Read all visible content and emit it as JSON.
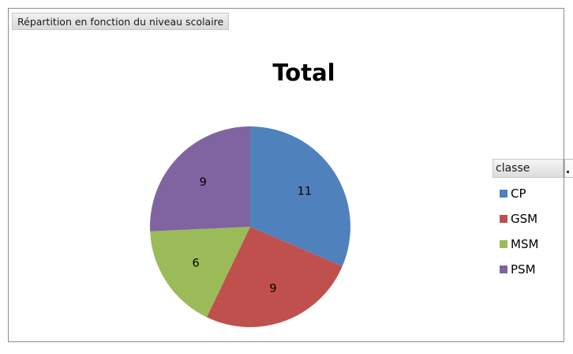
{
  "filter_label": "Répartition en fonction du niveau scolaire",
  "legend": {
    "field_label": "classe"
  },
  "chart_data": {
    "type": "pie",
    "title": "Total",
    "categories": [
      "CP",
      "GSM",
      "MSM",
      "PSM"
    ],
    "values": [
      11,
      9,
      6,
      9
    ],
    "colors": [
      "#4f81bd",
      "#c0504d",
      "#9bbb59",
      "#8064a2"
    ],
    "legend_position": "right"
  }
}
